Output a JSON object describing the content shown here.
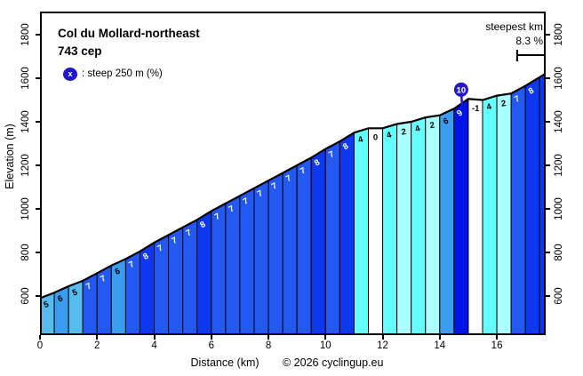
{
  "header": {
    "title": "Col du Mollard-northeast",
    "subtitle": "743 cep",
    "legend_symbol": "x",
    "legend_text": ": steep 250 m (%)"
  },
  "annotation": {
    "steepest_label": "steepest km",
    "steepest_value": "8.3 %"
  },
  "axes": {
    "x_label": "Distance (km)",
    "y_label": "Elevation (m)",
    "x_ticks": [
      0,
      2,
      4,
      6,
      8,
      10,
      12,
      14,
      16
    ],
    "y_ticks": [
      600,
      800,
      1000,
      1200,
      1400,
      1600,
      1800
    ]
  },
  "footer": {
    "copyright": "© 2026 cyclingup.eu"
  },
  "colors": {
    "grad_neg1": "#FFFFFF",
    "grad_0": "#FFFFFF",
    "grad_2": "#AAFFFF",
    "grad_4": "#66FFFF",
    "grad_5": "#58BCEE",
    "grad_6": "#3C9DF0",
    "grad_7": "#2359F2",
    "grad_8": "#0D38F0",
    "grad_9": "#0013E8",
    "balloon": "#2217C9",
    "profile_line": "#000000",
    "label_light": "#FFFFFF",
    "label_dark": "#000000"
  },
  "chart_data": {
    "type": "area",
    "title": "Col du Mollard-northeast",
    "subtitle": "743 cep",
    "xlabel": "Distance (km)",
    "ylabel": "Elevation (m)",
    "xlim_km": [
      0,
      17.71
    ],
    "ylim_m": [
      405,
      1895
    ],
    "grid": false,
    "start_elevation_m": 590,
    "summit_elevation_m": 1622,
    "segment_length_km": 0.5,
    "segments_steep_pct": [
      5,
      6,
      5,
      7,
      7,
      6,
      7,
      8,
      7,
      7,
      7,
      8,
      7,
      7,
      7,
      7,
      7,
      7,
      7,
      8,
      7,
      8,
      4,
      0,
      4,
      2,
      4,
      2,
      6,
      9,
      -1,
      4,
      2,
      7,
      8
    ],
    "final_partial_segment": {
      "from_km": 17.5,
      "to_km": 17.71,
      "steep_pct": 8,
      "label_shown": false
    },
    "max_marker": {
      "steep_pct": 10,
      "at_km": 14.75,
      "on_segment_steep_pct": 9
    },
    "steepest_km": {
      "label": "steepest km",
      "value_pct": 8.3,
      "from_km": 16.71,
      "to_km": 17.71
    }
  }
}
